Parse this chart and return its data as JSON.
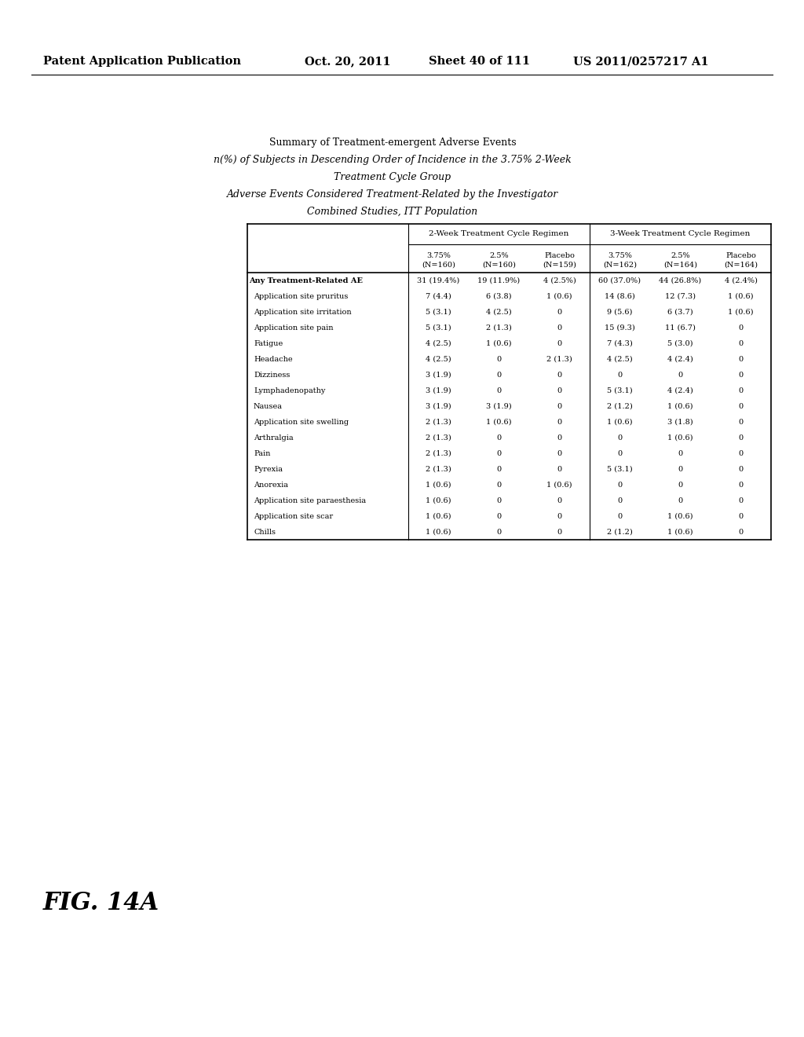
{
  "header_line1": "Patent Application Publication",
  "header_date": "Oct. 20, 2011",
  "header_sheet": "Sheet 40 of 111",
  "header_patent": "US 2011/0257217 A1",
  "fig_label": "FIG. 14A",
  "title_lines": [
    "Summary of Treatment-emergent Adverse Events",
    "n(%) of Subjects in Descending Order of Incidence in the 3.75% 2-Week",
    "Treatment Cycle Group",
    "Adverse Events Considered Treatment-Related by the Investigator",
    "Combined Studies, ITT Population"
  ],
  "col_group1": "2-Week Treatment Cycle Regimen",
  "col_group2": "3-Week Treatment Cycle Regimen",
  "col_headers": [
    "3.75%\n(N=160)",
    "2.5%\n(N=160)",
    "Placebo\n(N=159)",
    "3.75%\n(N=162)",
    "2.5%\n(N=164)",
    "Placebo\n(N=164)"
  ],
  "row_labels": [
    "Any Treatment-Related AE",
    "Application site pruritus",
    "Application site irritation",
    "Application site pain",
    "Fatigue",
    "Headache",
    "Dizziness",
    "Lymphadenopathy",
    "Nausea",
    "Application site swelling",
    "Arthralgia",
    "Pain",
    "Pyrexia",
    "Anorexia",
    "Application site paraesthesia",
    "Application site scar",
    "Chills"
  ],
  "data": [
    [
      "31 (19.4%)",
      "19 (11.9%)",
      "4 (2.5%)",
      "60 (37.0%)",
      "44 (26.8%)",
      "4 (2.4%)"
    ],
    [
      "7 (4.4)",
      "6 (3.8)",
      "1 (0.6)",
      "14 (8.6)",
      "12 (7.3)",
      "1 (0.6)"
    ],
    [
      "5 (3.1)",
      "4 (2.5)",
      "0",
      "9 (5.6)",
      "6 (3.7)",
      "1 (0.6)"
    ],
    [
      "5 (3.1)",
      "2 (1.3)",
      "0",
      "15 (9.3)",
      "11 (6.7)",
      "0"
    ],
    [
      "4 (2.5)",
      "1 (0.6)",
      "0",
      "7 (4.3)",
      "5 (3.0)",
      "0"
    ],
    [
      "4 (2.5)",
      "0",
      "2 (1.3)",
      "4 (2.5)",
      "4 (2.4)",
      "0"
    ],
    [
      "3 (1.9)",
      "0",
      "0",
      "0",
      "0",
      "0"
    ],
    [
      "3 (1.9)",
      "0",
      "0",
      "5 (3.1)",
      "4 (2.4)",
      "0"
    ],
    [
      "3 (1.9)",
      "3 (1.9)",
      "0",
      "2 (1.2)",
      "1 (0.6)",
      "0"
    ],
    [
      "2 (1.3)",
      "1 (0.6)",
      "0",
      "1 (0.6)",
      "3 (1.8)",
      "0"
    ],
    [
      "2 (1.3)",
      "0",
      "0",
      "0",
      "1 (0.6)",
      "0"
    ],
    [
      "2 (1.3)",
      "0",
      "0",
      "0",
      "0",
      "0"
    ],
    [
      "2 (1.3)",
      "0",
      "0",
      "5 (3.1)",
      "0",
      "0"
    ],
    [
      "1 (0.6)",
      "0",
      "1 (0.6)",
      "0",
      "0",
      "0"
    ],
    [
      "1 (0.6)",
      "0",
      "0",
      "0",
      "0",
      "0"
    ],
    [
      "1 (0.6)",
      "0",
      "0",
      "0",
      "1 (0.6)",
      "0"
    ],
    [
      "1 (0.6)",
      "0",
      "0",
      "2 (1.2)",
      "1 (0.6)",
      "0"
    ]
  ],
  "bg_color": "#ffffff",
  "text_color": "#000000"
}
